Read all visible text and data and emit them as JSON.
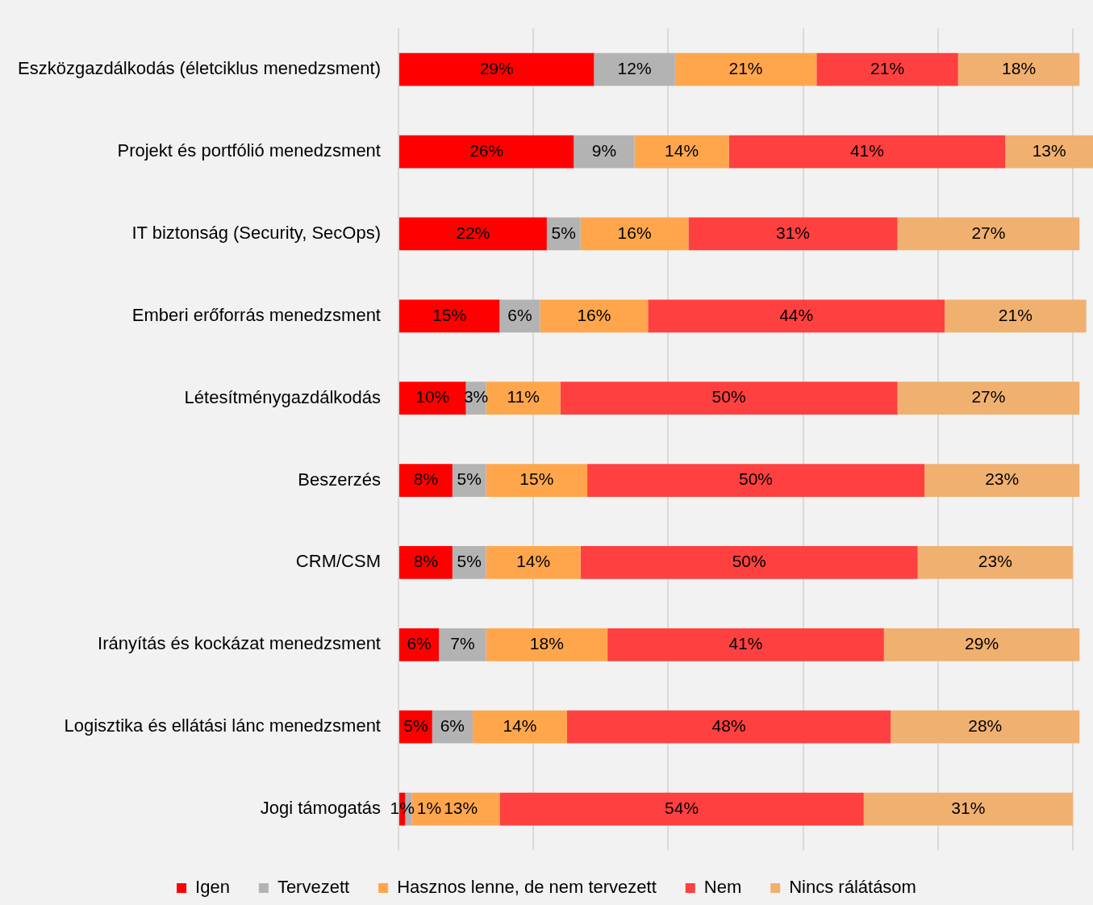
{
  "chart_data": {
    "type": "bar",
    "orientation": "horizontal",
    "stacked": true,
    "categories": [
      "Eszközgazdálkodás (életciklus menedzsment)",
      "Projekt és portfólió menedzsment",
      "IT biztonság (Security, SecOps)",
      "Emberi erőforrás menedzsment",
      "Létesítménygazdálkodás",
      "Beszerzés",
      "CRM/CSM",
      "Irányítás és kockázat menedzsment",
      "Logisztika és ellátási lánc menedzsment",
      "Jogi támogatás"
    ],
    "series": [
      {
        "name": "Igen",
        "color": "#ff0000",
        "values": [
          29,
          26,
          22,
          15,
          10,
          8,
          8,
          6,
          5,
          1
        ],
        "value_labels": [
          "29%",
          "26%",
          "22%",
          "15%",
          "10%",
          "8%",
          "8%",
          "6%",
          "5%",
          "1%"
        ]
      },
      {
        "name": "Tervezett",
        "color": "#b3b3b3",
        "values": [
          12,
          9,
          5,
          6,
          3,
          5,
          5,
          7,
          6,
          1
        ],
        "value_labels": [
          "12%",
          "9%",
          "5%",
          "6%",
          "3%",
          "5%",
          "5%",
          "7%",
          "6%",
          "1%"
        ]
      },
      {
        "name": "Hasznos lenne, de nem tervezett",
        "color": "#ffa64d",
        "values": [
          21,
          14,
          16,
          16,
          11,
          15,
          14,
          18,
          14,
          13
        ],
        "value_labels": [
          "21%",
          "14%",
          "16%",
          "16%",
          "11%",
          "15%",
          "14%",
          "18%",
          "14%",
          "13%"
        ]
      },
      {
        "name": "Nem",
        "color": "#ff4040",
        "values": [
          21,
          41,
          31,
          44,
          50,
          50,
          50,
          41,
          48,
          54
        ],
        "value_labels": [
          "21%",
          "41%",
          "31%",
          "44%",
          "50%",
          "50%",
          "50%",
          "41%",
          "48%",
          "54%"
        ]
      },
      {
        "name": "Nincs rálátásom",
        "color": "#f0b070",
        "values": [
          18,
          13,
          27,
          21,
          27,
          23,
          23,
          29,
          28,
          31
        ],
        "value_labels": [
          "18%",
          "13%",
          "27%",
          "21%",
          "27%",
          "23%",
          "23%",
          "29%",
          "28%",
          "31%"
        ]
      }
    ],
    "xlim": [
      0,
      103
    ],
    "xticks": [
      {
        "value": 0,
        "label": null
      },
      {
        "value": 20,
        "label": null
      },
      {
        "value": 40,
        "label": null
      },
      {
        "value": 60,
        "label": null
      },
      {
        "value": 80,
        "label": null
      },
      {
        "value": 100,
        "label": null
      }
    ],
    "tick_labels": "y",
    "grid": "x",
    "legend": "bottom"
  }
}
